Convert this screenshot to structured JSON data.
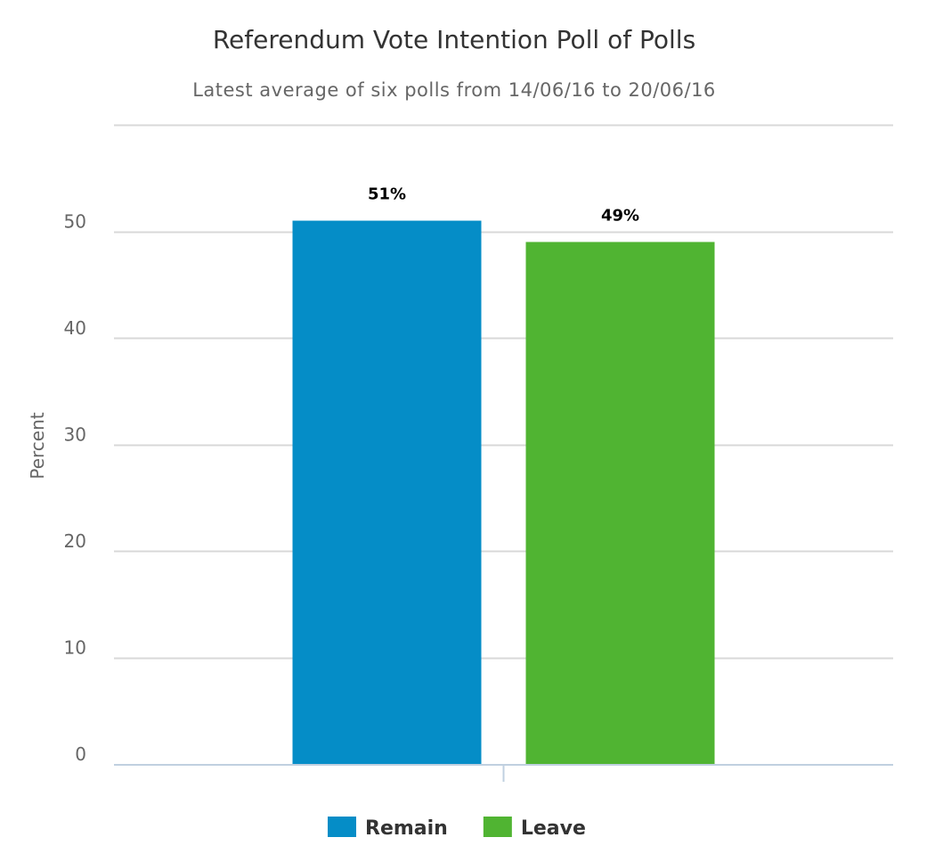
{
  "chart_data": {
    "type": "bar",
    "title": "Referendum Vote Intention Poll of Polls",
    "subtitle": "Latest average of six polls from 14/06/16 to 20/06/16",
    "xlabel": "",
    "ylabel": "Percent",
    "ylim": [
      0,
      60
    ],
    "yticks": [
      0,
      10,
      20,
      30,
      40,
      50
    ],
    "grid": true,
    "legend_position": "bottom-center",
    "series": [
      {
        "name": "Remain",
        "values": [
          51
        ],
        "label": "51%",
        "color": "#058DC7"
      },
      {
        "name": "Leave",
        "values": [
          49
        ],
        "label": "49%",
        "color": "#50B432"
      }
    ]
  }
}
